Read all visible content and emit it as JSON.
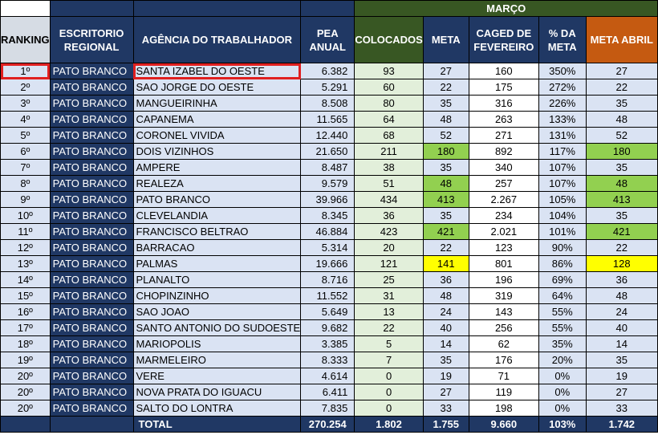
{
  "header": {
    "month": "MARÇO",
    "ranking": "RANKING",
    "escritorio": "ESCRITORIO REGIONAL",
    "agencia": "AGÊNCIA DO TRABALHADOR",
    "pea": "PEA ANUAL",
    "colocados": "COLOCADOS",
    "meta": "META",
    "caged": "CAGED DE FEVEREIRO",
    "pct_meta": "% DA META",
    "meta_abril": "META ABRIL"
  },
  "colors": {
    "navy": "#203864",
    "green_header": "#385723",
    "orange": "#c55a11",
    "highlight_green": "#92d050",
    "highlight_yellow": "#ffff00",
    "selection_red": "#e02020"
  },
  "rows": [
    {
      "rank": "1º",
      "regional": "PATO BRANCO",
      "agencia": "SANTA IZABEL DO OESTE",
      "pea": "6.382",
      "colocados": "93",
      "meta": "27",
      "caged": "160",
      "pct": "350%",
      "meta_abril": "27",
      "hl": ""
    },
    {
      "rank": "2º",
      "regional": "PATO BRANCO",
      "agencia": "SAO JORGE DO OESTE",
      "pea": "5.291",
      "colocados": "60",
      "meta": "22",
      "caged": "175",
      "pct": "272%",
      "meta_abril": "22",
      "hl": ""
    },
    {
      "rank": "3º",
      "regional": "PATO BRANCO",
      "agencia": "MANGUEIRINHA",
      "pea": "8.508",
      "colocados": "80",
      "meta": "35",
      "caged": "316",
      "pct": "226%",
      "meta_abril": "35",
      "hl": ""
    },
    {
      "rank": "4º",
      "regional": "PATO BRANCO",
      "agencia": "CAPANEMA",
      "pea": "11.565",
      "colocados": "64",
      "meta": "48",
      "caged": "263",
      "pct": "133%",
      "meta_abril": "48",
      "hl": ""
    },
    {
      "rank": "5º",
      "regional": "PATO BRANCO",
      "agencia": "CORONEL VIVIDA",
      "pea": "12.440",
      "colocados": "68",
      "meta": "52",
      "caged": "271",
      "pct": "131%",
      "meta_abril": "52",
      "hl": ""
    },
    {
      "rank": "6º",
      "regional": "PATO BRANCO",
      "agencia": "DOIS VIZINHOS",
      "pea": "21.650",
      "colocados": "211",
      "meta": "180",
      "caged": "892",
      "pct": "117%",
      "meta_abril": "180",
      "hl": "green"
    },
    {
      "rank": "7º",
      "regional": "PATO BRANCO",
      "agencia": "AMPERE",
      "pea": "8.487",
      "colocados": "38",
      "meta": "35",
      "caged": "340",
      "pct": "107%",
      "meta_abril": "35",
      "hl": ""
    },
    {
      "rank": "8º",
      "regional": "PATO BRANCO",
      "agencia": "REALEZA",
      "pea": "9.579",
      "colocados": "51",
      "meta": "48",
      "caged": "257",
      "pct": "107%",
      "meta_abril": "48",
      "hl": "green"
    },
    {
      "rank": "9º",
      "regional": "PATO BRANCO",
      "agencia": "PATO BRANCO",
      "pea": "39.966",
      "colocados": "434",
      "meta": "413",
      "caged": "2.267",
      "pct": "105%",
      "meta_abril": "413",
      "hl": "green"
    },
    {
      "rank": "10º",
      "regional": "PATO BRANCO",
      "agencia": "CLEVELANDIA",
      "pea": "8.345",
      "colocados": "36",
      "meta": "35",
      "caged": "234",
      "pct": "104%",
      "meta_abril": "35",
      "hl": ""
    },
    {
      "rank": "11º",
      "regional": "PATO BRANCO",
      "agencia": "FRANCISCO BELTRAO",
      "pea": "46.884",
      "colocados": "423",
      "meta": "421",
      "caged": "2.021",
      "pct": "101%",
      "meta_abril": "421",
      "hl": "green"
    },
    {
      "rank": "12º",
      "regional": "PATO BRANCO",
      "agencia": "BARRACAO",
      "pea": "5.314",
      "colocados": "20",
      "meta": "22",
      "caged": "123",
      "pct": "90%",
      "meta_abril": "22",
      "hl": ""
    },
    {
      "rank": "13º",
      "regional": "PATO BRANCO",
      "agencia": "PALMAS",
      "pea": "19.666",
      "colocados": "121",
      "meta": "141",
      "caged": "801",
      "pct": "86%",
      "meta_abril": "128",
      "hl": "yellow"
    },
    {
      "rank": "14º",
      "regional": "PATO BRANCO",
      "agencia": "PLANALTO",
      "pea": "8.716",
      "colocados": "25",
      "meta": "36",
      "caged": "196",
      "pct": "69%",
      "meta_abril": "36",
      "hl": ""
    },
    {
      "rank": "15º",
      "regional": "PATO BRANCO",
      "agencia": "CHOPINZINHO",
      "pea": "11.552",
      "colocados": "31",
      "meta": "48",
      "caged": "319",
      "pct": "64%",
      "meta_abril": "48",
      "hl": ""
    },
    {
      "rank": "16º",
      "regional": "PATO BRANCO",
      "agencia": "SAO JOAO",
      "pea": "5.649",
      "colocados": "13",
      "meta": "24",
      "caged": "143",
      "pct": "55%",
      "meta_abril": "24",
      "hl": ""
    },
    {
      "rank": "17º",
      "regional": "PATO BRANCO",
      "agencia": "SANTO ANTONIO DO SUDOESTE",
      "pea": "9.682",
      "colocados": "22",
      "meta": "40",
      "caged": "256",
      "pct": "55%",
      "meta_abril": "40",
      "hl": ""
    },
    {
      "rank": "18º",
      "regional": "PATO BRANCO",
      "agencia": "MARIOPOLIS",
      "pea": "3.385",
      "colocados": "5",
      "meta": "14",
      "caged": "62",
      "pct": "35%",
      "meta_abril": "14",
      "hl": ""
    },
    {
      "rank": "19º",
      "regional": "PATO BRANCO",
      "agencia": "MARMELEIRO",
      "pea": "8.333",
      "colocados": "7",
      "meta": "35",
      "caged": "176",
      "pct": "20%",
      "meta_abril": "35",
      "hl": ""
    },
    {
      "rank": "20º",
      "regional": "PATO BRANCO",
      "agencia": "VERE",
      "pea": "4.614",
      "colocados": "0",
      "meta": "19",
      "caged": "71",
      "pct": "0%",
      "meta_abril": "19",
      "hl": ""
    },
    {
      "rank": "20º",
      "regional": "PATO BRANCO",
      "agencia": "NOVA PRATA DO IGUACU",
      "pea": "6.411",
      "colocados": "0",
      "meta": "27",
      "caged": "119",
      "pct": "0%",
      "meta_abril": "27",
      "hl": ""
    },
    {
      "rank": "20º",
      "regional": "PATO BRANCO",
      "agencia": "SALTO DO LONTRA",
      "pea": "7.835",
      "colocados": "0",
      "meta": "33",
      "caged": "198",
      "pct": "0%",
      "meta_abril": "33",
      "hl": ""
    }
  ],
  "total": {
    "label": "TOTAL",
    "pea": "270.254",
    "colocados": "1.802",
    "meta": "1.755",
    "caged": "9.660",
    "pct": "103%",
    "meta_abril": "1.742"
  }
}
